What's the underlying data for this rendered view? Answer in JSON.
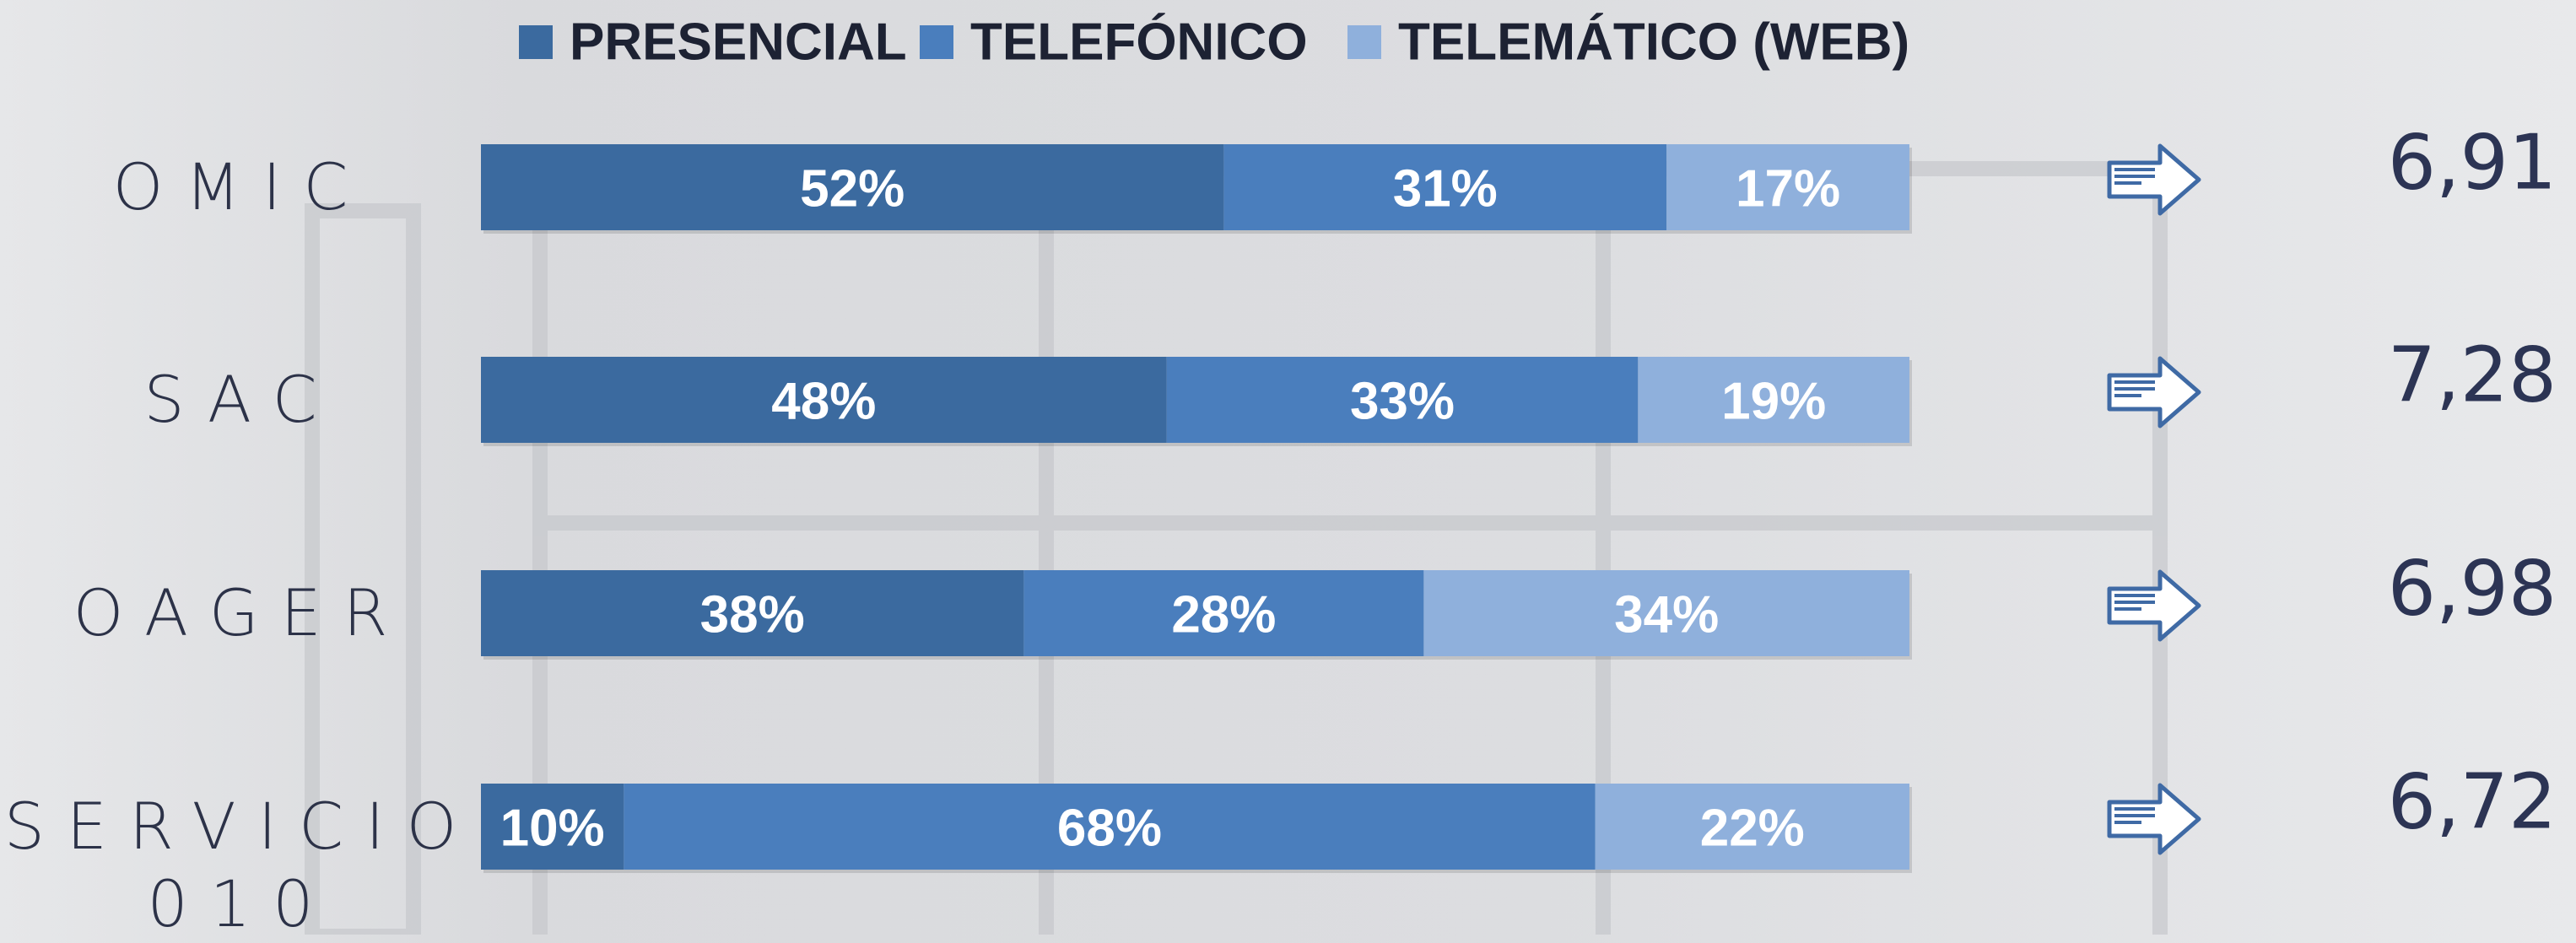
{
  "chart_data": {
    "type": "stacked-bar",
    "orientation": "horizontal",
    "categories": [
      "OMIC",
      "SAC",
      "OAGER",
      "SERVICIO 010"
    ],
    "xlim": [
      0,
      100
    ],
    "series": [
      {
        "name": "PRESENCIAL",
        "color": "#3b6a9f",
        "values": [
          52,
          48,
          38,
          10
        ],
        "value_labels": [
          "52%",
          "48%",
          "38%",
          "10%"
        ]
      },
      {
        "name": "TELEFÓNICO",
        "color": "#4a7ebd",
        "values": [
          31,
          33,
          28,
          68
        ],
        "value_labels": [
          "31%",
          "33%",
          "28%",
          "68%"
        ]
      },
      {
        "name": "TELEMÁTICO (WEB)",
        "color": "#8fb0dc",
        "values": [
          17,
          19,
          34,
          22
        ],
        "value_labels": [
          "17%",
          "19%",
          "34%",
          "22%"
        ]
      }
    ],
    "scores": {
      "values": [
        6.91,
        7.28,
        6.98,
        6.72
      ],
      "value_labels": [
        "6,91",
        "7,28",
        "6,98",
        "6,72"
      ]
    },
    "legend": "top"
  }
}
